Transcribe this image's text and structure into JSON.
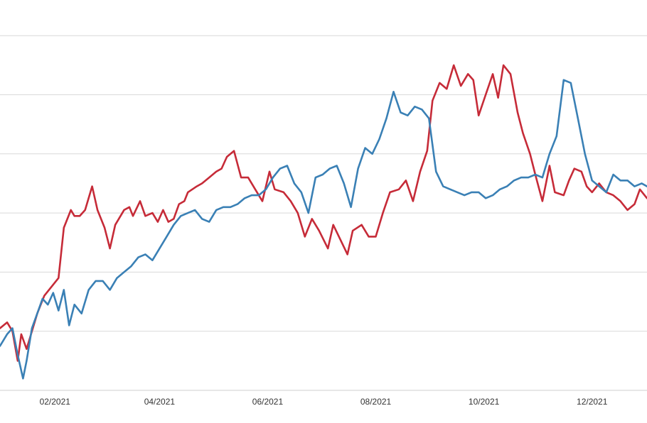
{
  "chart_data": {
    "type": "line",
    "title": "",
    "xlabel": "",
    "ylabel": "",
    "y_tick_labels_visible": false,
    "grid": "horizontal",
    "legend": "none",
    "xlim": [
      0,
      365
    ],
    "ylim": [
      0,
      6
    ],
    "gridlines_y": [
      1,
      2,
      3,
      4,
      5,
      6
    ],
    "x_ticks": [
      {
        "label": "02/2021",
        "x": 31
      },
      {
        "label": "04/2021",
        "x": 90
      },
      {
        "label": "06/2021",
        "x": 151
      },
      {
        "label": "08/2021",
        "x": 212
      },
      {
        "label": "10/2021",
        "x": 273
      },
      {
        "label": "12/2021",
        "x": 334
      }
    ],
    "series": [
      {
        "color": "#c62b38",
        "x": [
          0,
          4,
          7,
          10,
          12,
          15,
          18,
          21,
          25,
          29,
          33,
          36,
          40,
          42,
          45,
          48,
          52,
          55,
          59,
          62,
          65,
          70,
          73,
          75,
          79,
          82,
          86,
          89,
          92,
          95,
          98,
          101,
          104,
          106,
          111,
          114,
          118,
          122,
          125,
          128,
          132,
          136,
          140,
          144,
          148,
          152,
          155,
          160,
          164,
          168,
          172,
          176,
          180,
          185,
          188,
          192,
          196,
          199,
          204,
          208,
          212,
          216,
          220,
          225,
          229,
          233,
          237,
          241,
          244,
          248,
          252,
          256,
          260,
          264,
          267,
          270,
          274,
          278,
          281,
          284,
          288,
          292,
          295,
          299,
          302,
          306,
          310,
          313,
          318,
          321,
          324,
          328,
          331,
          334,
          338,
          342,
          346,
          350,
          354,
          358,
          361,
          365
        ],
        "y": [
          1.05,
          1.15,
          1.0,
          0.5,
          0.95,
          0.7,
          1.0,
          1.3,
          1.6,
          1.75,
          1.9,
          2.75,
          3.05,
          2.95,
          2.95,
          3.05,
          3.45,
          3.05,
          2.75,
          2.4,
          2.8,
          3.05,
          3.1,
          2.95,
          3.2,
          2.95,
          3.0,
          2.85,
          3.05,
          2.85,
          2.9,
          3.15,
          3.2,
          3.35,
          3.45,
          3.5,
          3.6,
          3.7,
          3.75,
          3.95,
          4.05,
          3.6,
          3.6,
          3.4,
          3.2,
          3.7,
          3.4,
          3.35,
          3.2,
          3.0,
          2.6,
          2.9,
          2.7,
          2.4,
          2.8,
          2.55,
          2.3,
          2.7,
          2.8,
          2.6,
          2.6,
          3.0,
          3.35,
          3.4,
          3.55,
          3.2,
          3.7,
          4.05,
          4.9,
          5.2,
          5.1,
          5.5,
          5.15,
          5.35,
          5.25,
          4.65,
          5.0,
          5.35,
          4.95,
          5.5,
          5.35,
          4.7,
          4.35,
          4.0,
          3.65,
          3.2,
          3.8,
          3.35,
          3.3,
          3.55,
          3.75,
          3.7,
          3.45,
          3.35,
          3.5,
          3.35,
          3.3,
          3.2,
          3.05,
          3.15,
          3.4,
          3.25
        ]
      },
      {
        "color": "#3a80b5",
        "x": [
          0,
          4,
          7,
          10,
          13,
          15,
          18,
          21,
          24,
          27,
          30,
          33,
          36,
          39,
          42,
          46,
          50,
          54,
          58,
          62,
          66,
          70,
          74,
          78,
          82,
          86,
          90,
          94,
          98,
          102,
          106,
          110,
          114,
          118,
          122,
          126,
          130,
          134,
          138,
          142,
          146,
          150,
          154,
          158,
          162,
          166,
          170,
          174,
          178,
          182,
          186,
          190,
          194,
          198,
          202,
          206,
          210,
          214,
          218,
          222,
          226,
          230,
          234,
          238,
          242,
          246,
          250,
          254,
          258,
          262,
          266,
          270,
          274,
          278,
          282,
          286,
          290,
          294,
          298,
          302,
          306,
          310,
          314,
          318,
          322,
          326,
          330,
          334,
          338,
          342,
          346,
          350,
          354,
          358,
          362,
          365
        ],
        "y": [
          0.75,
          0.95,
          1.05,
          0.6,
          0.2,
          0.5,
          1.05,
          1.3,
          1.55,
          1.45,
          1.65,
          1.35,
          1.7,
          1.1,
          1.45,
          1.3,
          1.7,
          1.85,
          1.85,
          1.7,
          1.9,
          2.0,
          2.1,
          2.25,
          2.3,
          2.2,
          2.4,
          2.6,
          2.8,
          2.95,
          3.0,
          3.05,
          2.9,
          2.85,
          3.05,
          3.1,
          3.1,
          3.15,
          3.25,
          3.3,
          3.3,
          3.4,
          3.6,
          3.75,
          3.8,
          3.5,
          3.35,
          3.0,
          3.6,
          3.65,
          3.75,
          3.8,
          3.5,
          3.1,
          3.75,
          4.1,
          4.0,
          4.25,
          4.6,
          5.05,
          4.7,
          4.65,
          4.8,
          4.75,
          4.6,
          3.7,
          3.45,
          3.4,
          3.35,
          3.3,
          3.35,
          3.35,
          3.25,
          3.3,
          3.4,
          3.45,
          3.55,
          3.6,
          3.6,
          3.65,
          3.6,
          4.0,
          4.3,
          5.25,
          5.2,
          4.6,
          4.0,
          3.55,
          3.45,
          3.35,
          3.65,
          3.55,
          3.55,
          3.45,
          3.5,
          3.45
        ]
      }
    ]
  }
}
